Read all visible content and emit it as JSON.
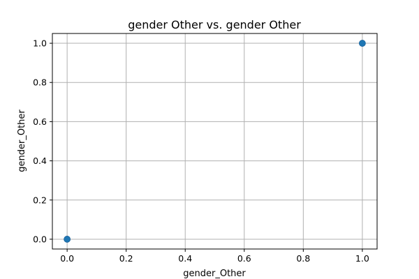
{
  "chart_data": {
    "type": "scatter",
    "title": "gender Other vs. gender Other",
    "xlabel": "gender_Other",
    "ylabel": "gender_Other",
    "xlim": [
      -0.05,
      1.05
    ],
    "ylim": [
      -0.05,
      1.05
    ],
    "xticks": [
      0.0,
      0.2,
      0.4,
      0.6,
      0.8,
      1.0
    ],
    "yticks": [
      0.0,
      0.2,
      0.4,
      0.6,
      0.8,
      1.0
    ],
    "xtick_labels": [
      "0.0",
      "0.2",
      "0.4",
      "0.6",
      "0.8",
      "1.0"
    ],
    "ytick_labels": [
      "0.0",
      "0.2",
      "0.4",
      "0.6",
      "0.8",
      "1.0"
    ],
    "grid": true,
    "point_color": "#1f77b4",
    "points": [
      {
        "x": 0.0,
        "y": 0.0
      },
      {
        "x": 1.0,
        "y": 1.0
      }
    ]
  }
}
